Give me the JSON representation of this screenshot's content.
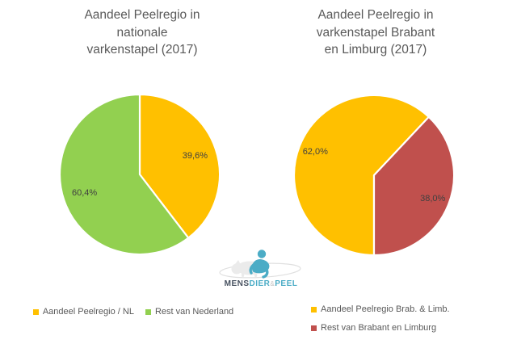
{
  "page": {
    "background": "#FFFFFF"
  },
  "text_colors": {
    "title": "#595959",
    "data_label": "#404040",
    "legend": "#595959"
  },
  "chart_data": [
    {
      "type": "pie",
      "title": "Aandeel Peelregio in nationale varkenstapel (2017)",
      "title_lines": [
        "Aandeel Peelregio in",
        "nationale",
        "varkenstapel (2017)"
      ],
      "labels": [
        "Aandeel Peelregio / NL",
        "Rest van Nederland"
      ],
      "values": [
        39.6,
        60.4
      ],
      "data_labels": [
        "39,6%",
        "60,4%"
      ],
      "colors": [
        "#FFC000",
        "#92D050"
      ],
      "start_angle_deg": 0,
      "label_radius_frac": 0.73,
      "legend_position": "bottom",
      "legend_layout": "row"
    },
    {
      "type": "pie",
      "title": "Aandeel Peelregio in varkenstapel Brabant en Limburg (2017)",
      "title_lines": [
        "Aandeel Peelregio in",
        "varkenstapel Brabant",
        "en Limburg (2017)"
      ],
      "labels": [
        "Aandeel Peelregio Brab. & Limb.",
        "Rest van Brabant en Limburg"
      ],
      "values": [
        62.0,
        38.0
      ],
      "data_labels": [
        "62,0%",
        "38,0%"
      ],
      "colors": [
        "#FFC000",
        "#C0504D"
      ],
      "start_angle_deg": 180,
      "label_radius_frac": 0.79,
      "legend_position": "bottom",
      "legend_layout": "column"
    }
  ],
  "logo": {
    "name": "MENS DIER & PEEL",
    "parts": [
      {
        "text": "MENS",
        "color": "#475160"
      },
      {
        "text": "DIER",
        "color": "#4BACC6"
      },
      {
        "text": "&",
        "color": "#C4C4C4"
      },
      {
        "text": "PEEL",
        "color": "#4BACC6"
      }
    ],
    "icon_colors": {
      "person": "#4BACC6",
      "pig": "#EBEBEB",
      "swoosh": "#E0E0E0"
    }
  }
}
